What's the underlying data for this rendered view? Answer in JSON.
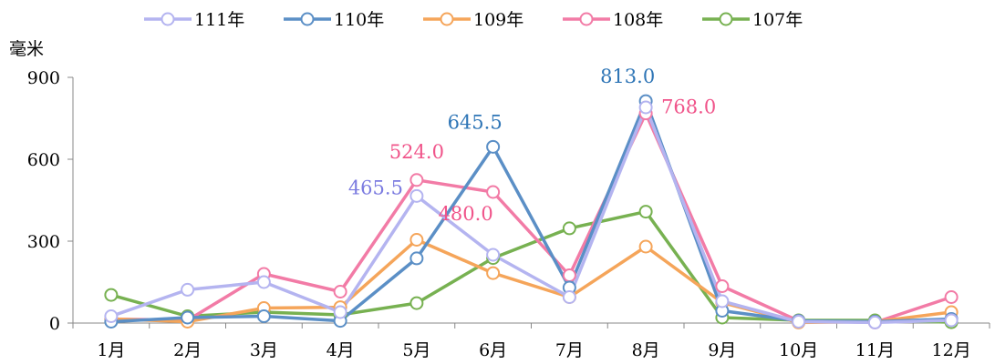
{
  "chart_data": {
    "type": "line",
    "ylabel": "毫米",
    "ylim": [
      0,
      900
    ],
    "yticks": [
      0,
      300,
      600,
      900
    ],
    "categories": [
      "1月",
      "2月",
      "3月",
      "4月",
      "5月",
      "6月",
      "7月",
      "8月",
      "9月",
      "10月",
      "11月",
      "12月"
    ],
    "legend_position": "top-center",
    "grid": false,
    "series": [
      {
        "name": "111年",
        "color": "#B4B4F0",
        "values": [
          25,
          122,
          150,
          40,
          465.5,
          250,
          95,
          790,
          80,
          5,
          2,
          10
        ]
      },
      {
        "name": "110年",
        "color": "#5B8FC6",
        "values": [
          5,
          20,
          25,
          8,
          237,
          645.5,
          130,
          813.0,
          45,
          8,
          5,
          15
        ]
      },
      {
        "name": "109年",
        "color": "#F5A55A",
        "values": [
          15,
          5,
          55,
          58,
          305,
          183,
          95,
          280,
          75,
          2,
          5,
          40
        ]
      },
      {
        "name": "108年",
        "color": "#F27BA6",
        "values": [
          15,
          10,
          180,
          115,
          524.0,
          480.0,
          175,
          768.0,
          135,
          8,
          2,
          95
        ]
      },
      {
        "name": "107年",
        "color": "#77B151",
        "values": [
          103,
          25,
          40,
          30,
          73,
          238,
          347,
          408,
          20,
          10,
          10,
          3
        ]
      }
    ],
    "data_labels": [
      {
        "series": 0,
        "index": 4,
        "text": "465.5",
        "color": "#7B7BE0"
      },
      {
        "series": 1,
        "index": 5,
        "text": "645.5",
        "color": "#2E75B6"
      },
      {
        "series": 1,
        "index": 7,
        "text": "813.0",
        "color": "#2E75B6"
      },
      {
        "series": 3,
        "index": 4,
        "text": "524.0",
        "color": "#F0548A"
      },
      {
        "series": 3,
        "index": 5,
        "text": "480.0",
        "color": "#F0548A"
      },
      {
        "series": 3,
        "index": 7,
        "text": "768.0",
        "color": "#F0548A"
      }
    ]
  }
}
